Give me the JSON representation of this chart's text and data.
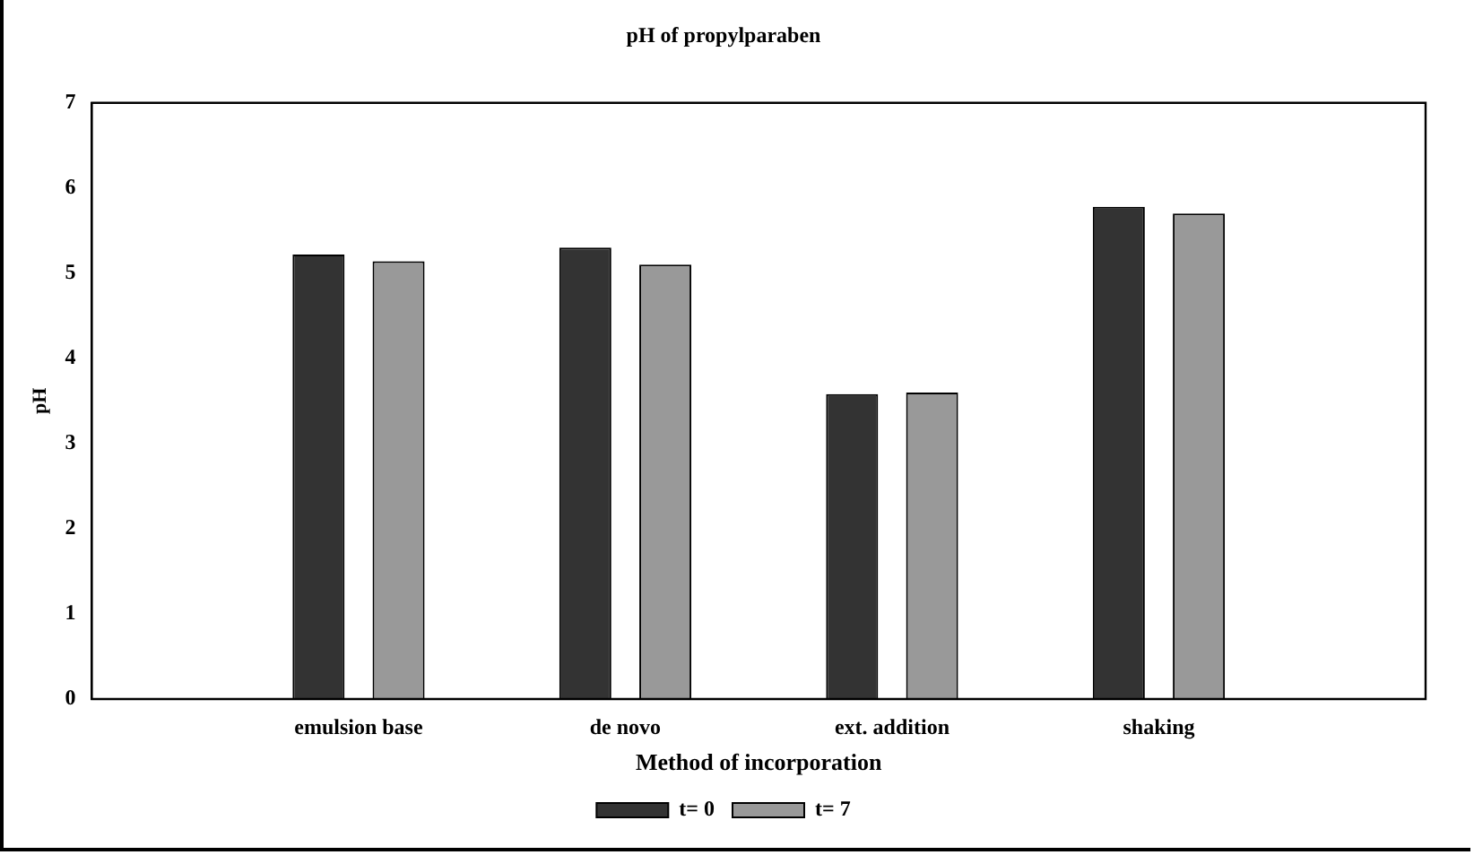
{
  "chart_data": {
    "type": "bar",
    "title": "pH of propylparaben",
    "xlabel": "Method of incorporation",
    "ylabel": "pH",
    "categories": [
      "emulsion base",
      "de novo",
      "ext. addition",
      "shaking"
    ],
    "series": [
      {
        "name": "t= 0",
        "color": "#333333",
        "values": [
          5.22,
          5.3,
          3.58,
          5.78
        ]
      },
      {
        "name": "t= 7",
        "color": "#999999",
        "values": [
          5.14,
          5.1,
          3.6,
          5.7
        ]
      }
    ],
    "ylim": [
      0,
      7
    ],
    "yticks": [
      0,
      1,
      2,
      3,
      4,
      5,
      6,
      7
    ],
    "grid": false,
    "legend": "bottom"
  }
}
